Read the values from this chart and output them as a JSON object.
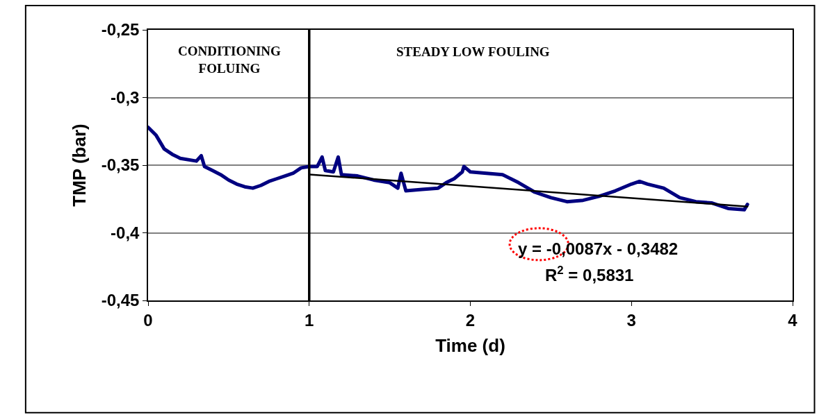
{
  "chart_data": {
    "type": "line",
    "xlabel": "Time (d)",
    "ylabel": "TMP (bar)",
    "xlim": [
      0,
      4
    ],
    "xticks": [
      0,
      1,
      2,
      3,
      4
    ],
    "ylim": [
      -0.45,
      -0.25
    ],
    "yticks": [
      {
        "value": -0.45,
        "label": "-0,45"
      },
      {
        "value": -0.4,
        "label": "-0,4"
      },
      {
        "value": -0.35,
        "label": "-0,35"
      },
      {
        "value": -0.3,
        "label": "-0,3"
      },
      {
        "value": -0.25,
        "label": "-0,25"
      }
    ],
    "grid": "y",
    "marker": "none",
    "line_style": "solid",
    "series": [
      {
        "color": "#000080",
        "x": [
          0,
          0.05,
          0.1,
          0.15,
          0.2,
          0.3,
          0.33,
          0.35,
          0.4,
          0.45,
          0.5,
          0.55,
          0.6,
          0.65,
          0.7,
          0.75,
          0.8,
          0.85,
          0.9,
          0.95,
          1.0,
          1.05,
          1.08,
          1.1,
          1.15,
          1.18,
          1.2,
          1.3,
          1.4,
          1.5,
          1.55,
          1.57,
          1.6,
          1.7,
          1.8,
          1.85,
          1.9,
          1.95,
          1.96,
          2.0,
          2.1,
          2.2,
          2.3,
          2.4,
          2.5,
          2.6,
          2.7,
          2.8,
          2.9,
          3.0,
          3.05,
          3.1,
          3.2,
          3.3,
          3.4,
          3.5,
          3.6,
          3.7,
          3.72
        ],
        "values": [
          -0.322,
          -0.328,
          -0.338,
          -0.342,
          -0.345,
          -0.347,
          -0.343,
          -0.351,
          -0.354,
          -0.357,
          -0.361,
          -0.364,
          -0.366,
          -0.367,
          -0.365,
          -0.362,
          -0.36,
          -0.358,
          -0.356,
          -0.352,
          -0.351,
          -0.351,
          -0.344,
          -0.354,
          -0.355,
          -0.344,
          -0.357,
          -0.358,
          -0.361,
          -0.363,
          -0.367,
          -0.356,
          -0.369,
          -0.368,
          -0.367,
          -0.363,
          -0.36,
          -0.355,
          -0.351,
          -0.355,
          -0.356,
          -0.357,
          -0.363,
          -0.37,
          -0.374,
          -0.377,
          -0.376,
          -0.373,
          -0.369,
          -0.364,
          -0.362,
          -0.364,
          -0.367,
          -0.374,
          -0.377,
          -0.378,
          -0.382,
          -0.383,
          -0.379
        ]
      },
      {
        "type": "line",
        "color": "#000000",
        "x": [
          1,
          3.72
        ],
        "values": [
          -0.3569,
          -0.3806
        ]
      }
    ],
    "ref_lines": [
      {
        "axis": "x",
        "value": 1,
        "color": "#000000"
      }
    ],
    "annotations": [
      "CONDITIONING\nFOLUING",
      "STEADY LOW FOULING",
      "y = -0,0087x - 0,3482",
      "R$^{2}$ = 0,5831"
    ]
  }
}
